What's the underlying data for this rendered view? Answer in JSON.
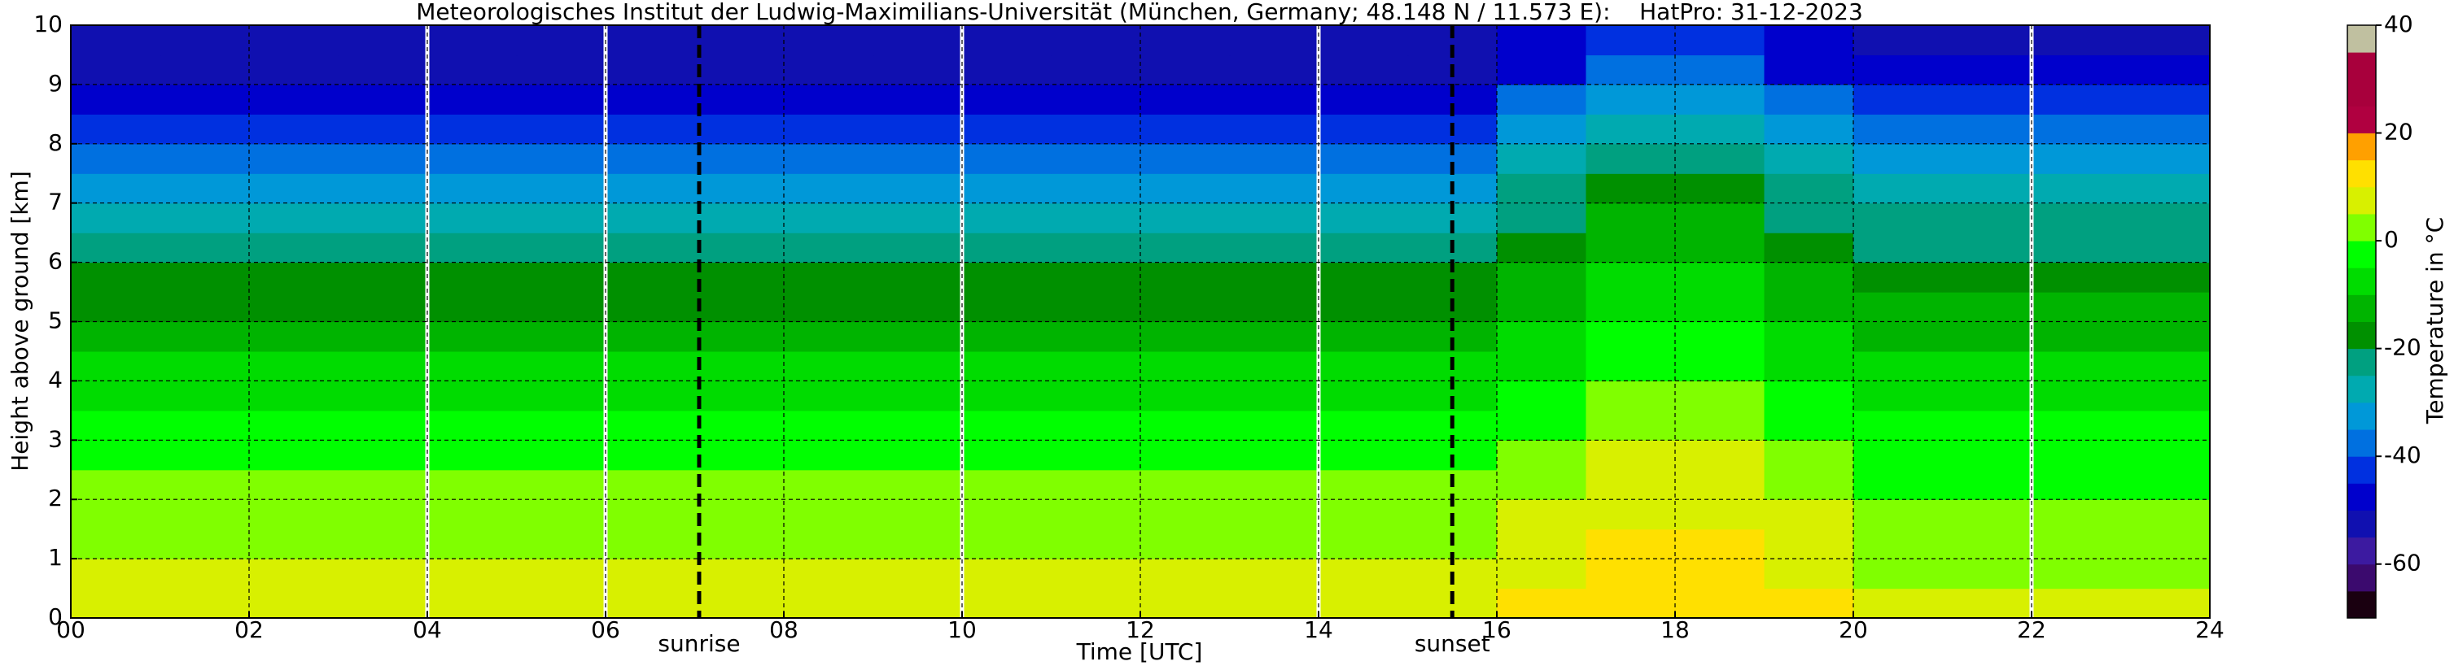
{
  "chart_data": {
    "type": "heatmap",
    "title": "Meteorologisches Institut der Ludwig-Maximilians-Universität (München, Germany; 48.148 N / 11.573 E):    HatPro: 31-12-2023",
    "xlabel": "Time [UTC]",
    "ylabel": "Height above ground [km]",
    "x_edges": [
      0,
      1,
      2,
      3,
      4,
      5,
      6,
      7,
      8,
      9,
      10,
      11,
      12,
      13,
      14,
      15,
      16,
      17,
      18,
      19,
      20,
      21,
      22,
      23,
      24
    ],
    "y_edges": [
      0,
      0.5,
      1,
      1.5,
      2,
      2.5,
      3,
      3.5,
      4,
      4.5,
      5,
      5.5,
      6,
      6.5,
      7,
      7.5,
      8,
      8.5,
      9,
      9.5,
      10
    ],
    "values": [
      [
        7,
        7,
        7,
        7,
        7,
        7,
        7,
        7,
        7,
        7,
        7,
        7,
        7,
        7,
        9,
        9,
        10,
        14,
        14,
        10,
        5,
        5,
        5,
        5
      ],
      [
        6,
        6,
        6,
        6,
        6,
        6,
        6,
        6,
        6,
        6,
        6,
        6,
        6,
        6,
        6,
        6,
        9,
        13,
        13,
        9,
        4,
        4,
        4,
        4
      ],
      [
        4,
        4,
        4,
        4,
        4,
        4,
        4,
        4,
        4,
        4,
        4,
        4,
        4,
        4,
        4,
        4,
        7,
        11,
        11,
        7,
        3,
        3,
        3,
        3
      ],
      [
        2,
        2,
        2,
        2,
        2,
        2,
        2,
        2,
        2,
        2,
        2,
        2,
        2,
        2,
        2,
        2,
        5,
        9,
        9,
        5,
        1,
        1,
        1,
        1
      ],
      [
        0,
        0,
        0,
        0,
        0,
        0,
        0,
        0,
        0,
        0,
        0,
        0,
        0,
        0,
        0,
        0,
        3,
        7,
        7,
        3,
        -1,
        -1,
        -1,
        -1
      ],
      [
        -3,
        -3,
        -3,
        -3,
        -3,
        -3,
        -3,
        -3,
        -3,
        -3,
        -3,
        -3,
        -3,
        -3,
        -3,
        -3,
        1,
        5,
        5,
        1,
        -3,
        -3,
        -3,
        -3
      ],
      [
        -5,
        -5,
        -5,
        -5,
        -5,
        -5,
        -5,
        -5,
        -5,
        -5,
        -5,
        -5,
        -5,
        -5,
        -5,
        -5,
        -1,
        2,
        2,
        -1,
        -5,
        -5,
        -5,
        -5
      ],
      [
        -7,
        -7,
        -7,
        -7,
        -7,
        -7,
        -7,
        -7,
        -7,
        -7,
        -7,
        -7,
        -7,
        -7,
        -7,
        -7,
        -3,
        0,
        0,
        -3,
        -7,
        -7,
        -7,
        -7
      ],
      [
        -10,
        -10,
        -10,
        -10,
        -10,
        -10,
        -10,
        -10,
        -10,
        -10,
        -10,
        -10,
        -10,
        -10,
        -10,
        -10,
        -6,
        -3,
        -3,
        -6,
        -9,
        -9,
        -9,
        -9
      ],
      [
        -13,
        -13,
        -13,
        -13,
        -13,
        -13,
        -13,
        -13,
        -13,
        -13,
        -13,
        -13,
        -13,
        -13,
        -13,
        -13,
        -9,
        -5,
        -5,
        -9,
        -12,
        -12,
        -12,
        -12
      ],
      [
        -17,
        -17,
        -17,
        -17,
        -17,
        -17,
        -17,
        -17,
        -17,
        -17,
        -17,
        -17,
        -17,
        -17,
        -17,
        -17,
        -12,
        -7,
        -7,
        -12,
        -15,
        -15,
        -15,
        -15
      ],
      [
        -19,
        -19,
        -19,
        -19,
        -19,
        -19,
        -19,
        -19,
        -19,
        -19,
        -19,
        -19,
        -19,
        -19,
        -19,
        -19,
        -14,
        -9,
        -9,
        -14,
        -18,
        -18,
        -18,
        -18
      ],
      [
        -23,
        -23,
        -23,
        -23,
        -23,
        -23,
        -23,
        -23,
        -23,
        -23,
        -23,
        -23,
        -23,
        -23,
        -23,
        -23,
        -17,
        -12,
        -12,
        -17,
        -21,
        -21,
        -21,
        -21
      ],
      [
        -27,
        -27,
        -27,
        -27,
        -27,
        -27,
        -27,
        -27,
        -27,
        -27,
        -27,
        -27,
        -27,
        -27,
        -27,
        -27,
        -21,
        -15,
        -15,
        -21,
        -25,
        -25,
        -25,
        -25
      ],
      [
        -32,
        -32,
        -32,
        -32,
        -32,
        -32,
        -32,
        -32,
        -32,
        -32,
        -32,
        -32,
        -32,
        -32,
        -32,
        -32,
        -25,
        -18,
        -18,
        -25,
        -30,
        -30,
        -30,
        -30
      ],
      [
        -36,
        -36,
        -36,
        -36,
        -36,
        -36,
        -36,
        -36,
        -36,
        -36,
        -36,
        -36,
        -36,
        -36,
        -36,
        -36,
        -29,
        -22,
        -22,
        -29,
        -35,
        -35,
        -35,
        -35
      ],
      [
        -41,
        -41,
        -41,
        -41,
        -41,
        -41,
        -41,
        -41,
        -41,
        -41,
        -41,
        -41,
        -41,
        -41,
        -41,
        -41,
        -34,
        -27,
        -27,
        -34,
        -40,
        -40,
        -40,
        -40
      ],
      [
        -46,
        -46,
        -46,
        -46,
        -46,
        -46,
        -46,
        -46,
        -46,
        -46,
        -46,
        -46,
        -46,
        -46,
        -46,
        -46,
        -40,
        -33,
        -33,
        -40,
        -45,
        -45,
        -45,
        -45
      ],
      [
        -51,
        -51,
        -51,
        -51,
        -51,
        -51,
        -51,
        -51,
        -51,
        -51,
        -51,
        -51,
        -51,
        -51,
        -51,
        -51,
        -46,
        -40,
        -40,
        -46,
        -50,
        -50,
        -50,
        -50
      ],
      [
        -55,
        -55,
        -55,
        -55,
        -55,
        -55,
        -55,
        -55,
        -55,
        -55,
        -55,
        -55,
        -55,
        -55,
        -55,
        -55,
        -50,
        -44,
        -44,
        -50,
        -54,
        -54,
        -54,
        -54
      ]
    ],
    "xlim": [
      0,
      24
    ],
    "ylim": [
      0,
      10
    ],
    "xticks": [
      {
        "value": 0,
        "label": "00"
      },
      {
        "value": 2,
        "label": "02"
      },
      {
        "value": 4,
        "label": "04"
      },
      {
        "value": 6,
        "label": "06"
      },
      {
        "value": 8,
        "label": "08"
      },
      10,
      12,
      14,
      16,
      18,
      20,
      22,
      24
    ],
    "yticks": [
      0,
      1,
      2,
      3,
      4,
      5,
      6,
      7,
      8,
      9,
      10
    ],
    "grid": true,
    "gaps": [
      4,
      6,
      10,
      14,
      22
    ],
    "annotations": [
      {
        "text": "sunrise",
        "x": 7.05
      },
      {
        "text": "sunset",
        "x": 15.5
      }
    ],
    "colorbar": {
      "label": "Temperature in °C",
      "lim": [
        -70,
        40
      ],
      "ticks": [
        -60,
        -40,
        -20,
        0,
        20,
        40
      ],
      "edges": [
        -70,
        -65,
        -60,
        -55,
        -50,
        -45,
        -40,
        -35,
        -30,
        -25,
        -20,
        -15,
        -10,
        -5,
        0,
        5,
        10,
        15,
        20,
        25,
        30,
        35,
        40
      ],
      "colors": [
        "#1a0010",
        "#3b0a6e",
        "#3c1aa0",
        "#1010b0",
        "#0000cc",
        "#0030e0",
        "#0070e0",
        "#0098d8",
        "#00aab0",
        "#00a080",
        "#009000",
        "#00b400",
        "#00dc00",
        "#00ff00",
        "#80ff00",
        "#d8f000",
        "#ffe000",
        "#ffa000",
        "#b00040",
        "#a8003c",
        "#a8003c",
        "#c0c0a0"
      ]
    }
  }
}
